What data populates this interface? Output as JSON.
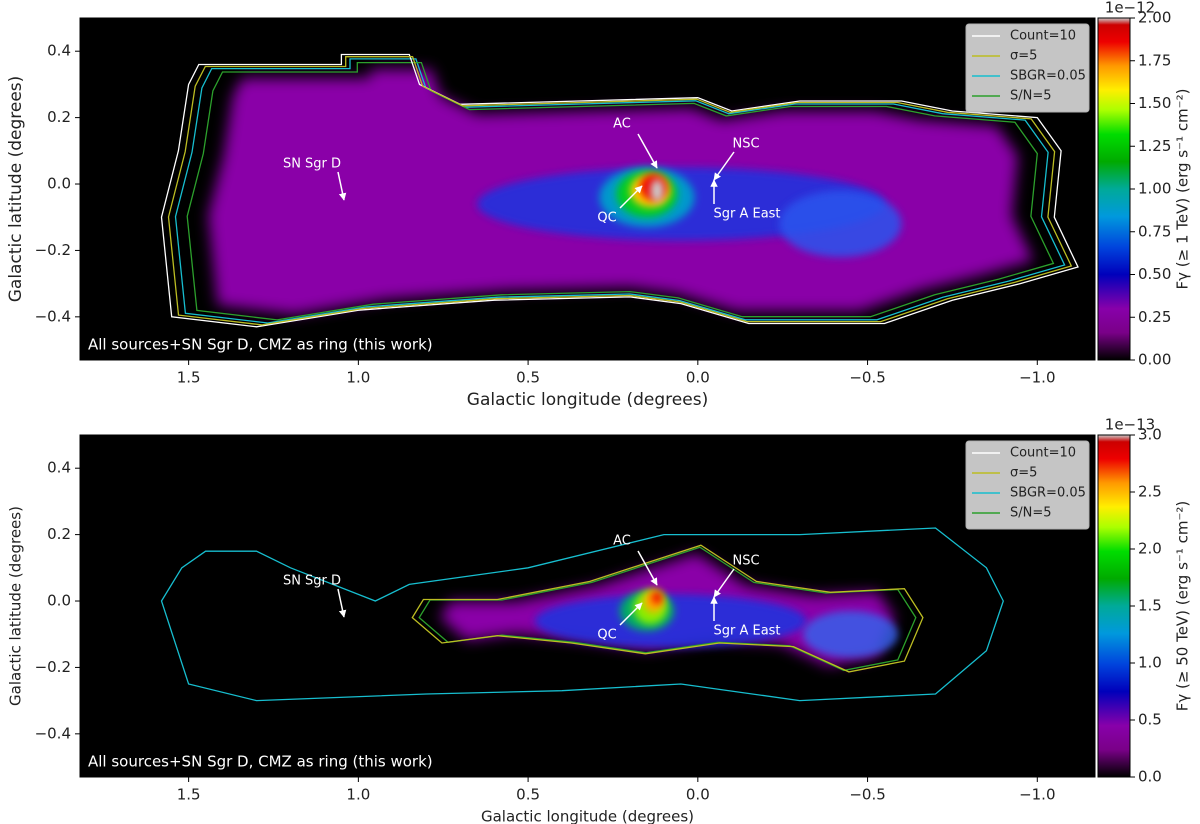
{
  "chart_data": [
    {
      "type": "heatmap",
      "xlabel": "Galactic longitude (degrees)",
      "ylabel": "Galactic latitude (degrees)",
      "xlim": [
        1.82,
        -1.17
      ],
      "xticks": [
        1.5,
        {
          "value": 1,
          "label": "1.0"
        },
        0.5,
        {
          "value": 0,
          "label": "0.0"
        },
        {
          "value": -0.5,
          "label": "−0.5"
        },
        {
          "value": -1,
          "label": "−1.0"
        }
      ],
      "ylim": [
        -0.53,
        0.5
      ],
      "yticks": [
        {
          "value": -0.4,
          "label": "−0.4"
        },
        {
          "value": -0.2,
          "label": "−0.2"
        },
        {
          "value": 0,
          "label": "0.0"
        },
        0.2,
        0.4
      ],
      "clim": [
        0,
        2
      ],
      "cticks": [
        {
          "value": 0,
          "label": "0.00"
        },
        0.25,
        {
          "value": 0.5,
          "label": "0.50"
        },
        0.75,
        {
          "value": 1,
          "label": "1.00"
        },
        1.25,
        {
          "value": 1.5,
          "label": "1.50"
        },
        1.75,
        {
          "value": 2,
          "label": "2.00"
        }
      ],
      "colorbar_offset": "1e−12",
      "colorbar_label": "Fγ (≥ 1 TeV) (erg s⁻¹ cm⁻²)",
      "legend": [
        {
          "name": "Count=10",
          "color": "#ffffff"
        },
        {
          "name": "σ=5",
          "color": "#bcbd22"
        },
        {
          "name": "SBGR=0.05",
          "color": "#17becf"
        },
        {
          "name": "S/N=5",
          "color": "#2ca02c"
        }
      ],
      "annotations": [
        "AC",
        "NSC",
        "QC",
        "Sgr A East",
        "SN Sgr D"
      ],
      "panel_text": "All sources+SN Sgr D, CMZ as ring (this work)"
    },
    {
      "type": "heatmap",
      "xlabel": "Galactic longitude (degrees)",
      "ylabel": "Galactic latitude (degrees)",
      "xlim": [
        1.82,
        -1.17
      ],
      "xticks": [
        1.5,
        {
          "value": 1,
          "label": "1.0"
        },
        0.5,
        {
          "value": 0,
          "label": "0.0"
        },
        {
          "value": -0.5,
          "label": "−0.5"
        },
        {
          "value": -1,
          "label": "−1.0"
        }
      ],
      "ylim": [
        -0.53,
        0.5
      ],
      "yticks": [
        {
          "value": -0.4,
          "label": "−0.4"
        },
        {
          "value": -0.2,
          "label": "−0.2"
        },
        {
          "value": 0,
          "label": "0.0"
        },
        0.2,
        0.4
      ],
      "clim": [
        0,
        3
      ],
      "cticks": [
        {
          "value": 0,
          "label": "0.0"
        },
        0.5,
        {
          "value": 1,
          "label": "1.0"
        },
        1.5,
        {
          "value": 2,
          "label": "2.0"
        },
        2.5,
        {
          "value": 3,
          "label": "3.0"
        }
      ],
      "colorbar_offset": "1e−13",
      "colorbar_label": "Fγ (≥ 50 TeV) (erg s⁻¹ cm⁻²)",
      "legend": [
        {
          "name": "Count=10",
          "color": "#ffffff"
        },
        {
          "name": "σ=5",
          "color": "#bcbd22"
        },
        {
          "name": "SBGR=0.05",
          "color": "#17becf"
        },
        {
          "name": "S/N=5",
          "color": "#2ca02c"
        }
      ],
      "annotations": [
        "AC",
        "NSC",
        "QC",
        "Sgr A East",
        "SN Sgr D"
      ],
      "panel_text": "All sources+SN Sgr D, CMZ as ring (this work)"
    }
  ]
}
